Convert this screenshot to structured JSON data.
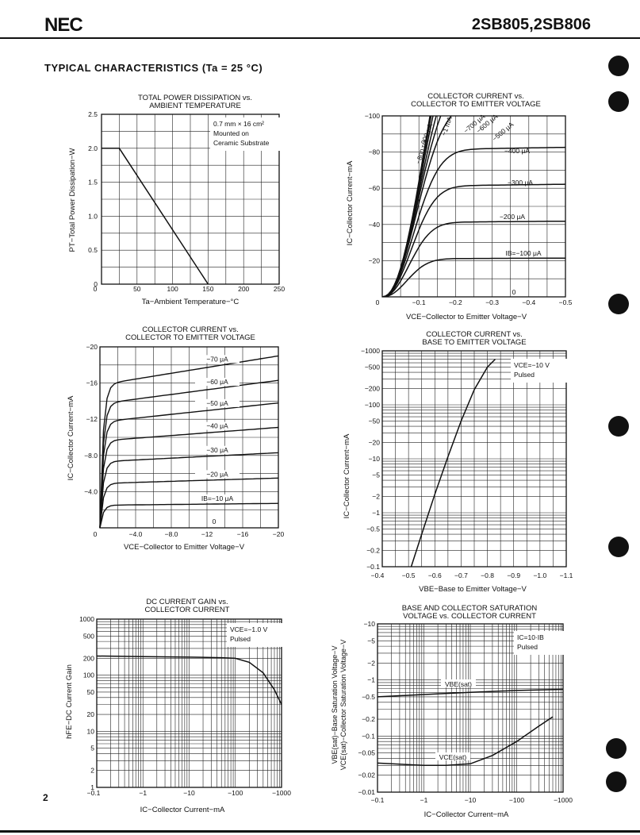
{
  "header": {
    "logo": "NEC",
    "part_numbers": "2SB805,2SB806"
  },
  "section_title": "TYPICAL CHARACTERISTICS (Ta = 25 °C)",
  "page_number": "2",
  "chart_data": [
    {
      "id": "power-dissipation",
      "type": "line",
      "title": [
        "TOTAL POWER DISSIPATION vs.",
        "AMBIENT TEMPERATURE"
      ],
      "xlabel": "Ta−Ambient Temperature−°C",
      "ylabel": "PT−Total Power Dissipation−W",
      "xlim": [
        0,
        250
      ],
      "ylim": [
        0,
        2.5
      ],
      "xticks": [
        "0",
        "50",
        "100",
        "150",
        "200",
        "250"
      ],
      "yticks": [
        "2.5",
        "2.0",
        "1.5",
        "1.0",
        "0.5",
        "0"
      ],
      "annotation": [
        "0.7 mm × 16 cm²",
        "Mounted on",
        "Ceramic Substrate"
      ],
      "series": [
        {
          "x": [
            0,
            25,
            150
          ],
          "y": [
            2.0,
            2.0,
            0
          ]
        }
      ]
    },
    {
      "id": "ic-vce-large",
      "type": "line",
      "title": [
        "COLLECTOR CURRENT vs.",
        "COLLECTOR TO EMITTER VOLTAGE"
      ],
      "xlabel": "VCE−Collector to Emitter Voltage−V",
      "ylabel": "IC−Collector Current−mA",
      "xlim": [
        0,
        -0.5
      ],
      "ylim": [
        0,
        -100
      ],
      "xticks": [
        "0",
        "−0.1",
        "−0.2",
        "−0.3",
        "−0.4",
        "−0.5"
      ],
      "yticks": [
        "−100",
        "−80",
        "−60",
        "−40",
        "−20"
      ],
      "series": [
        {
          "name": "IB=−100 μA",
          "sat": -21
        },
        {
          "name": "−200 μA",
          "sat": -41
        },
        {
          "name": "−300 μA",
          "sat": -61
        },
        {
          "name": "−400 μA",
          "sat": -81
        },
        {
          "name": "−500 μA",
          "sat": -100
        },
        {
          "name": "−600 μA",
          "sat": -115
        },
        {
          "name": "−700 μA",
          "sat": -130
        },
        {
          "name": "−1 mA",
          "sat": -150
        },
        {
          "name": "−800 μA",
          "sat": -170
        },
        {
          "name": "−900 μA",
          "sat": -190
        }
      ],
      "extra_labels": [
        "0"
      ]
    },
    {
      "id": "ic-vce-small",
      "type": "line",
      "title": [
        "COLLECTOR CURRENT vs.",
        "COLLECTOR TO EMITTER VOLTAGE"
      ],
      "xlabel": "VCE−Collector to Emitter Voltage−V",
      "ylabel": "IC−Collector Current−mA",
      "xlim": [
        0,
        -20
      ],
      "ylim": [
        0,
        -20
      ],
      "xticks": [
        "0",
        "−4.0",
        "−8.0",
        "−12",
        "−16",
        "−20"
      ],
      "yticks": [
        "−20",
        "−16",
        "−12",
        "−8.0",
        "−4.0"
      ],
      "series": [
        {
          "name": "IB=−10 μA",
          "y0": -2.5,
          "y1": -2.7
        },
        {
          "name": "−20 μA",
          "y0": -4.9,
          "y1": -5.5
        },
        {
          "name": "−30 μA",
          "y0": -7.3,
          "y1": -8.3
        },
        {
          "name": "−40 μA",
          "y0": -9.6,
          "y1": -11.1
        },
        {
          "name": "−50 μA",
          "y0": -11.7,
          "y1": -13.8
        },
        {
          "name": "−60 μA",
          "y0": -13.7,
          "y1": -16.3
        },
        {
          "name": "−70 μA",
          "y0": -15.8,
          "y1": -19.0
        }
      ],
      "extra_labels": [
        "0"
      ]
    },
    {
      "id": "ic-vbe",
      "type": "line",
      "title": [
        "COLLECTOR CURRENT vs.",
        "BASE TO EMITTER VOLTAGE"
      ],
      "xlabel": "VBE−Base to Emitter Voltage−V",
      "ylabel": "IC−Collector Current−mA",
      "xlim": [
        -0.4,
        -1.1
      ],
      "ylim": [
        -0.1,
        -1000
      ],
      "yscale": "log",
      "xticks": [
        "−0.4",
        "−0.5",
        "−0.6",
        "−0.7",
        "−0.8",
        "−0.9",
        "−1.0",
        "−1.1"
      ],
      "yticks": [
        "−1000",
        "−500",
        "−200",
        "−100",
        "−50",
        "−20",
        "−10",
        "−5",
        "−2",
        "−1",
        "−0.5",
        "−0.2",
        "−0.1"
      ],
      "annotation": [
        "VCE=−10 V",
        "Pulsed"
      ],
      "series": [
        {
          "x": [
            -0.51,
            -0.55,
            -0.6,
            -0.65,
            -0.7,
            -0.75,
            -0.8,
            -0.83
          ],
          "y": [
            -0.1,
            -0.4,
            -2.2,
            -11,
            -50,
            -190,
            -500,
            -700
          ]
        }
      ]
    },
    {
      "id": "hfe-ic",
      "type": "line",
      "title": [
        "DC CURRENT GAIN vs.",
        "COLLECTOR CURRENT"
      ],
      "xlabel": "IC−Collector Current−mA",
      "ylabel": "hFE−DC Current Gain",
      "xlim": [
        -0.1,
        -1000
      ],
      "ylim": [
        1,
        1000
      ],
      "xscale": "log",
      "yscale": "log",
      "xticks": [
        "−0.1",
        "−1",
        "−10",
        "−100",
        "−1000"
      ],
      "yticks": [
        "1000",
        "500",
        "200",
        "100",
        "50",
        "20",
        "10",
        "5",
        "2",
        "1"
      ],
      "annotation": [
        "VCE=−1.0 V",
        "Pulsed"
      ],
      "series": [
        {
          "x": [
            -0.1,
            -1,
            -10,
            -50,
            -100,
            -200,
            -400,
            -700,
            -1000
          ],
          "y": [
            220,
            215,
            210,
            205,
            200,
            170,
            110,
            55,
            30
          ]
        }
      ]
    },
    {
      "id": "vsat-ic",
      "type": "line",
      "title": [
        "BASE AND COLLECTOR SATURATION",
        "VOLTAGE vs. COLLECTOR CURRENT"
      ],
      "xlabel": "IC−Collector Current−mA",
      "ylabel": [
        "VBE(sat)−Base Saturation Voltage−V",
        "VCE(sat)−Collector Saturation Voltage−V"
      ],
      "xlim": [
        -0.1,
        -1000
      ],
      "ylim": [
        -0.01,
        -10
      ],
      "xscale": "log",
      "yscale": "log",
      "xticks": [
        "−0.1",
        "−1",
        "−10",
        "−100",
        "−1000"
      ],
      "yticks": [
        "−10",
        "−5",
        "−2",
        "−1",
        "−0.5",
        "−0.2",
        "−0.1",
        "−0.05",
        "−0.02",
        "−0.01"
      ],
      "annotation": [
        "IC=10·IB",
        "Pulsed"
      ],
      "series": [
        {
          "name": "VBE(sat)",
          "x": [
            -0.1,
            -1,
            -10,
            -100,
            -1000
          ],
          "y": [
            -0.5,
            -0.55,
            -0.6,
            -0.65,
            -0.68
          ]
        },
        {
          "name": "VCE(sat)",
          "x": [
            -0.1,
            -1,
            -3,
            -10,
            -30,
            -100,
            -300,
            -600
          ],
          "y": [
            -0.033,
            -0.03,
            -0.03,
            -0.032,
            -0.045,
            -0.08,
            -0.15,
            -0.22
          ]
        }
      ]
    }
  ]
}
